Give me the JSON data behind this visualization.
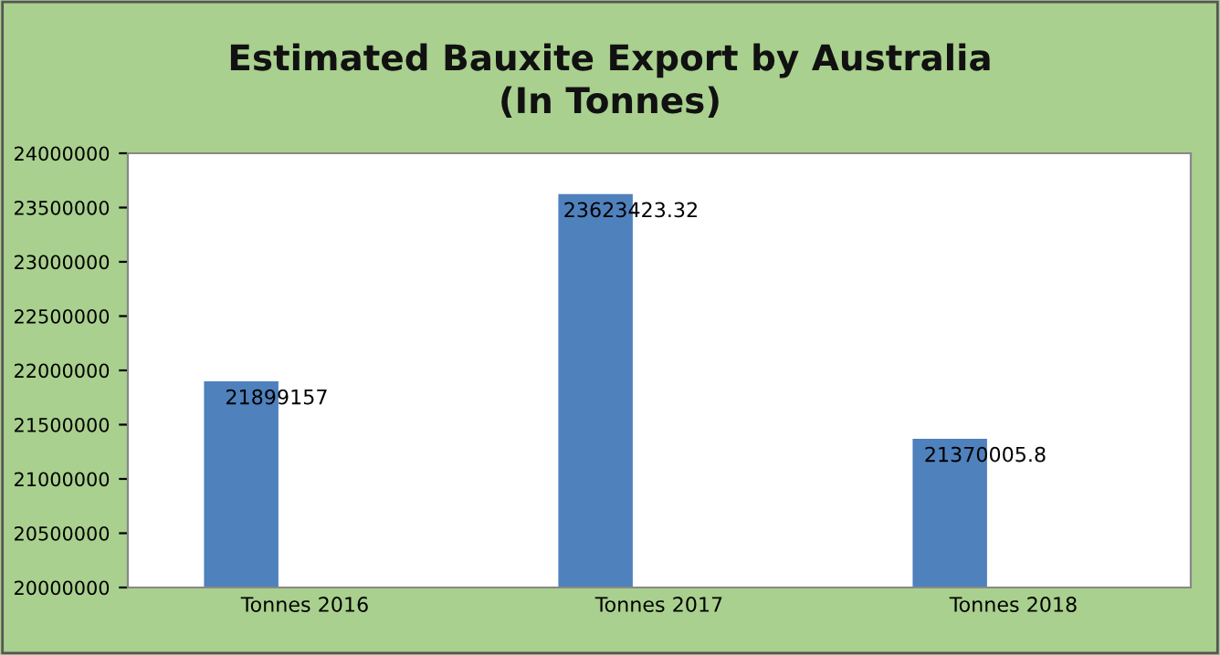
{
  "chart_data": {
    "type": "bar",
    "title": "Estimated Bauxite Export by Australia\n(In Tonnes)",
    "categories": [
      "Tonnes 2016",
      "Tonnes 2017",
      "Tonnes 2018"
    ],
    "values": [
      21899157,
      23623423.32,
      21370005.8
    ],
    "value_labels": [
      "21899157",
      "23623423.32",
      "21370005.8"
    ],
    "color": "#4f81bd",
    "ylim": [
      20000000,
      24000000
    ],
    "yticks": [
      20000000,
      20500000,
      21000000,
      21500000,
      22000000,
      22500000,
      23000000,
      23500000,
      24000000
    ],
    "grid": false
  }
}
